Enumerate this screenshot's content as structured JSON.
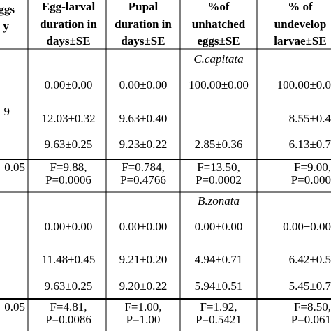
{
  "header": {
    "cells": [
      [
        "ggs",
        "y"
      ],
      [
        "Egg-larval",
        "duration in",
        "days±SE"
      ],
      [
        "Pupal",
        "duration in",
        "days±SE"
      ],
      [
        "%of",
        "unhatched",
        "eggs±SE"
      ],
      [
        "% of",
        "undevelop",
        "larvae±SE"
      ]
    ]
  },
  "sections": [
    {
      "species": "C.capitata",
      "rows": [
        {
          "cells": [
            "0.00±0.00",
            "0.00±0.00",
            "100.00±0.00",
            "100.00±0.0"
          ]
        },
        {
          "label": "9",
          "cells": [
            "12.03±0.32",
            "9.63±0.40",
            null,
            "8.55±0.4"
          ]
        },
        {
          "cells": [
            "9.63±0.25",
            "9.23±0.22",
            "2.85±0.36",
            "6.13±0.7"
          ]
        }
      ],
      "stats": {
        "label": "0.05",
        "cells": [
          [
            "F=9.88,",
            "P=0.0006"
          ],
          [
            "F=0.784,",
            "P=0.4766"
          ],
          [
            "F=13.50,",
            "P=0.0002"
          ],
          [
            "F=9.00,",
            "P=0.000"
          ]
        ]
      }
    },
    {
      "species": "B.zonata",
      "rows": [
        {
          "cells": [
            "0.00±0.00",
            "0.00±0.00",
            "0.00±0.00",
            "0.00±0.00"
          ]
        },
        {
          "cells": [
            "11.48±0.45",
            "9.21±0.20",
            "4.94±0.71",
            "6.42±0.5"
          ]
        },
        {
          "cells": [
            "9.63±0.25",
            "9.20±0.22",
            "5.94±0.51",
            "5.45±0.7"
          ]
        }
      ],
      "stats": {
        "label": "0.05",
        "cells": [
          [
            "F=4.81,",
            "P=0.0086"
          ],
          [
            "F=1.00,",
            "P=1.00"
          ],
          [
            "F=1.92,",
            "P=0.5421"
          ],
          [
            "F=8.50,",
            "P=0.061"
          ]
        ]
      }
    }
  ]
}
